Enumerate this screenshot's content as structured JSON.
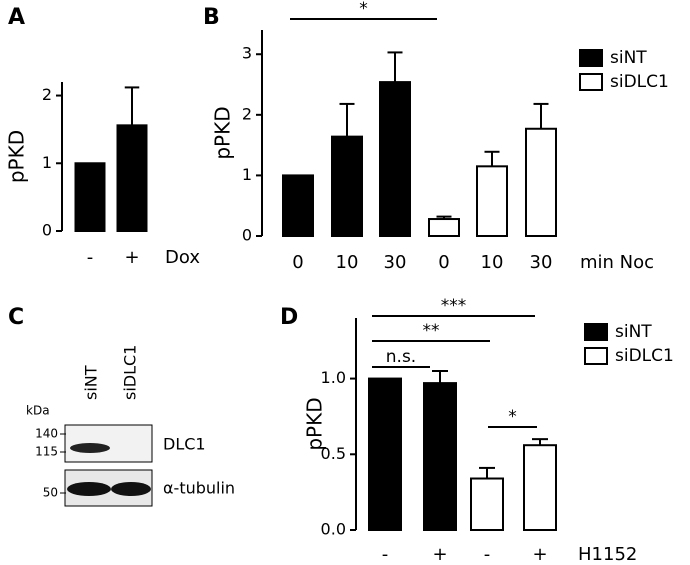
{
  "chart_data": [
    {
      "type": "bar",
      "panel": "A",
      "ylabel": "pPKD",
      "xlabel": "Dox",
      "categories": [
        "-",
        "+"
      ],
      "values": [
        1,
        1.56
      ],
      "errors": [
        null,
        0.56
      ],
      "color": "#000000",
      "ylim": [
        0,
        2.2
      ],
      "yticks": [
        0,
        1,
        2
      ]
    },
    {
      "type": "bar",
      "panel": "B",
      "ylabel": "pPKD",
      "xlabel": "min Noc",
      "categories": [
        "0",
        "10",
        "30",
        "0",
        "10",
        "30"
      ],
      "series": [
        {
          "name": "siNT",
          "color": "#000000",
          "values": [
            1,
            1.64,
            2.54,
            null,
            null,
            null
          ],
          "errors": [
            null,
            0.54,
            0.49,
            null,
            null,
            null
          ]
        },
        {
          "name": "siDLC1",
          "color": "#ffffff",
          "values": [
            null,
            null,
            null,
            0.28,
            1.15,
            1.77
          ],
          "errors": [
            null,
            null,
            null,
            0.04,
            0.24,
            0.41
          ]
        }
      ],
      "annotations": [
        "*"
      ],
      "ylim": [
        0,
        3.4
      ],
      "yticks": [
        0,
        1,
        2,
        3
      ]
    },
    {
      "type": "bar",
      "panel": "D",
      "ylabel": "pPKD",
      "xlabel": "H1152",
      "categories": [
        "-",
        "+",
        "-",
        "+"
      ],
      "series": [
        {
          "name": "siNT",
          "color": "#000000",
          "values": [
            1.0,
            0.97,
            null,
            null
          ],
          "errors": [
            null,
            0.08,
            null,
            null
          ]
        },
        {
          "name": "siDLC1",
          "color": "#ffffff",
          "values": [
            null,
            null,
            0.34,
            0.56
          ],
          "errors": [
            null,
            null,
            0.07,
            0.04
          ]
        }
      ],
      "annotations": [
        "n.s.",
        "**",
        "***",
        "*"
      ],
      "ylim": [
        0,
        1.4
      ],
      "yticks": [
        {
          "value": 0,
          "label": "0.0"
        },
        {
          "value": 0.5,
          "label": "0.5"
        },
        {
          "value": 1,
          "label": "1.0"
        }
      ]
    }
  ],
  "blot": {
    "panel": "C",
    "unit": "kDa",
    "lanes": [
      "siNT",
      "siDLC1"
    ],
    "markers": [
      "140",
      "115",
      "50"
    ],
    "proteins": [
      "DLC1",
      "α-tubulin"
    ]
  }
}
